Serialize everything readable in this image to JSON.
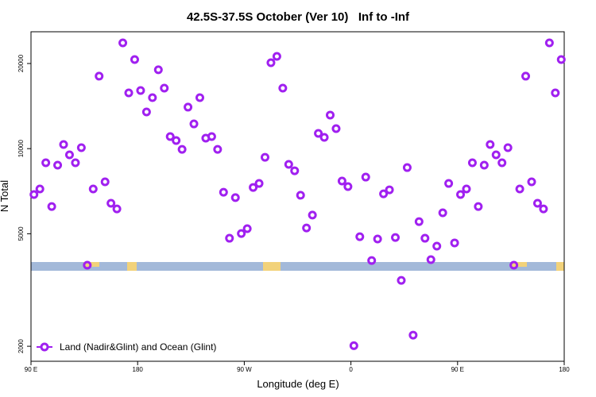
{
  "chart_data": {
    "type": "scatter",
    "title": "42.5S-37.5S October (Ver 10)   Inf to -Inf",
    "x_label": "Longitude (deg E)",
    "y_label": "N Total",
    "y_log": true,
    "xlim": [
      90,
      540
    ],
    "ylim": [
      1770,
      25900
    ],
    "xticks": [
      {
        "value": 90,
        "label": "90 E"
      },
      180,
      {
        "value": 270,
        "label": "90 W"
      },
      {
        "value": 360,
        "label": "0"
      },
      {
        "value": 450,
        "label": "90 E"
      },
      {
        "value": 540,
        "label": "180"
      }
    ],
    "yticks": [
      2000,
      5000,
      10000,
      20000
    ],
    "legend_position": "bottom-left",
    "series": [
      {
        "name": "Land (Nadir&Glint) and Ocean (Glint)",
        "color": "#a020f0",
        "x": [
          92.5,
          97.5,
          102.5,
          107.5,
          112.5,
          117.5,
          122.5,
          127.5,
          132.5,
          137.5,
          142.5,
          147.5,
          152.5,
          157.5,
          162.5,
          167.5,
          172.5,
          177.5,
          182.5,
          187.5,
          192.5,
          197.5,
          202.5,
          207.5,
          212.5,
          217.5,
          222.5,
          227.5,
          232.5,
          237.5,
          242.5,
          247.5,
          252.5,
          257.5,
          262.5,
          267.5,
          272.5,
          277.5,
          282.5,
          287.5,
          292.5,
          297.5,
          302.5,
          307.5,
          312.5,
          317.5,
          322.5,
          327.5,
          332.5,
          337.5,
          342.5,
          347.5,
          352.5,
          357.5,
          362.5,
          367.5,
          372.5,
          377.5,
          382.5,
          387.5,
          392.5,
          397.5,
          402.5,
          407.5,
          412.5,
          417.5,
          422.5,
          427.5,
          432.5,
          437.5,
          442.5,
          447.5,
          452.5,
          457.5,
          462.5,
          467.5,
          472.5,
          477.5,
          482.5,
          487.5,
          492.5,
          497.5,
          502.5,
          507.5,
          512.5,
          517.5,
          522.5,
          527.5,
          532.5,
          537.5
        ],
        "values": [
          6880,
          7200,
          8910,
          6240,
          8740,
          10340,
          9510,
          8910,
          10080,
          3870,
          7200,
          18040,
          7630,
          6410,
          6120,
          23660,
          15740,
          20660,
          16050,
          13480,
          15140,
          19000,
          16370,
          11030,
          10680,
          9940,
          14020,
          12230,
          15140,
          10890,
          11030,
          9940,
          7010,
          4820,
          6710,
          5010,
          5210,
          7290,
          7530,
          9320,
          20130,
          21200,
          16370,
          8800,
          8350,
          6840,
          5240,
          5820,
          11320,
          10960,
          13140,
          11770,
          7680,
          7340,
          2010,
          4880,
          7930,
          4020,
          4790,
          6920,
          7150,
          4850,
          3420,
          8570,
          2190,
          5520,
          4820,
          4050,
          4520,
          5930,
          7530,
          4640,
          6880,
          7200,
          8910,
          6240,
          8740,
          10340,
          9510,
          8910,
          10080,
          3870,
          7200,
          18040,
          7630,
          6410,
          6120,
          23660,
          15740,
          20660
        ]
      }
    ]
  }
}
